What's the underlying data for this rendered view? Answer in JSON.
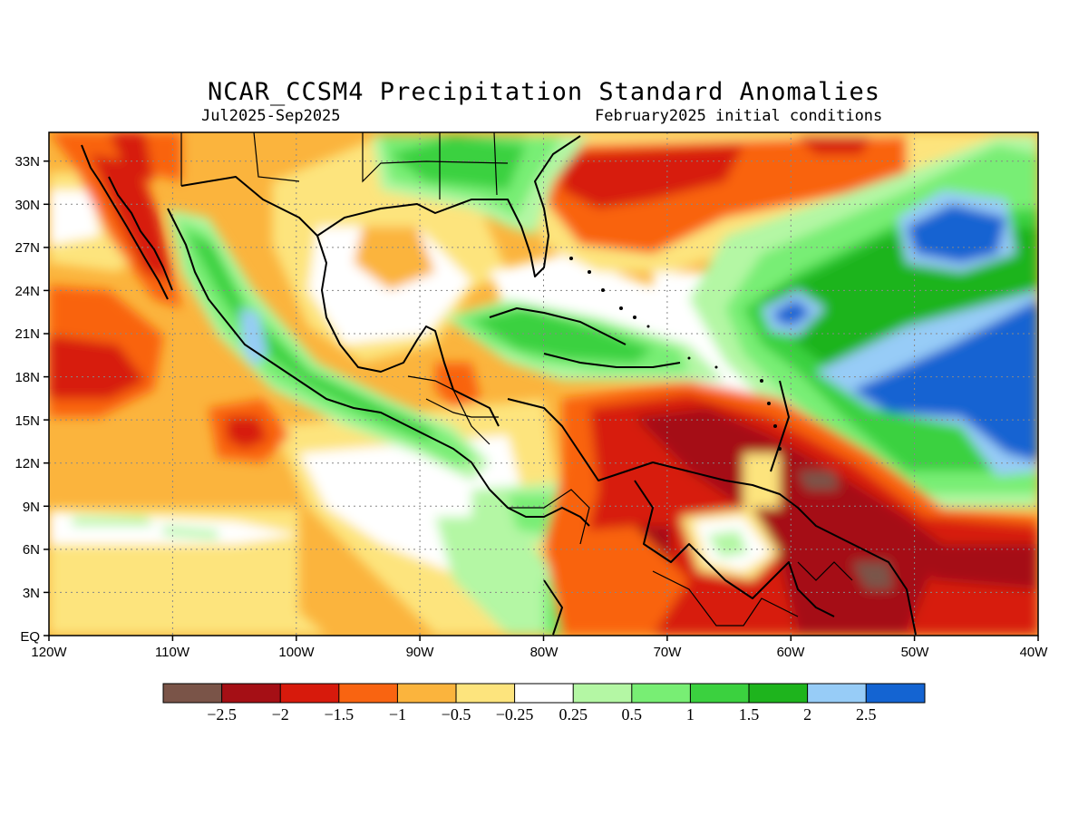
{
  "title": "NCAR_CCSM4 Precipitation Standard Anomalies",
  "period": "Jul2025-Sep2025",
  "initial_conditions": "February2025 initial conditions",
  "lat_labels": [
    "EQ",
    "3N",
    "6N",
    "9N",
    "12N",
    "15N",
    "18N",
    "21N",
    "24N",
    "27N",
    "30N",
    "33N"
  ],
  "lon_labels": [
    "120W",
    "110W",
    "100W",
    "90W",
    "80W",
    "70W",
    "60W",
    "50W",
    "40W"
  ],
  "map_extent": {
    "lon": [
      -120,
      -40
    ],
    "lat": [
      0,
      35
    ]
  },
  "colorbar": {
    "colors": [
      "#7a5448",
      "#a50f15",
      "#d71a0c",
      "#f96411",
      "#fbb43d",
      "#fde47d",
      "#ffffff",
      "#b4f7a4",
      "#78ee74",
      "#3bd13f",
      "#1eb41d",
      "#97ccf7",
      "#1464d2"
    ],
    "labels": [
      "−2.5",
      "−2",
      "−1.5",
      "−1",
      "−0.5",
      "−0.25",
      "0.25",
      "0.5",
      "1",
      "1.5",
      "2",
      "2.5"
    ]
  },
  "grid": "dotted"
}
